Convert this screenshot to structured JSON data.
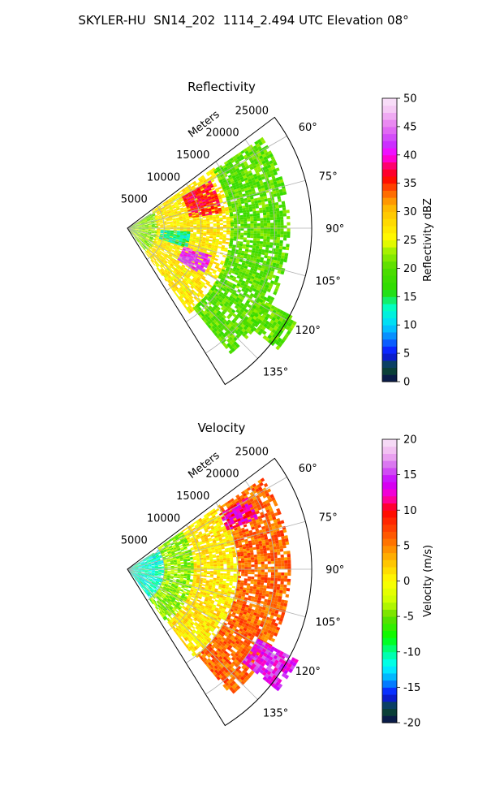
{
  "suptitle": "SKYLER-HU  SN14_202  1114_2.494 UTC Elevation 08°",
  "chart_data": [
    {
      "type": "heatmap",
      "subtype": "polar-sector-radar-ppi",
      "title": "Reflectivity",
      "radial_label": "Meters",
      "radial_ticks": [
        5000,
        10000,
        15000,
        20000,
        25000
      ],
      "r_max": 25000,
      "angle_ticks": [
        "60°",
        "75°",
        "90°",
        "105°",
        "120°",
        "135°"
      ],
      "angle_values": [
        60,
        75,
        90,
        105,
        120,
        135
      ],
      "theta_range": [
        53,
        148
      ],
      "grid": true,
      "colorbar": {
        "label": "Reflectivity dBZ",
        "range": [
          0,
          50
        ],
        "ticks": [
          0,
          5,
          10,
          15,
          20,
          25,
          30,
          35,
          40,
          45,
          50
        ],
        "colormap": [
          [
            0,
            "#0a0a50"
          ],
          [
            2.5,
            "#0a5030"
          ],
          [
            5,
            "#0a0aff"
          ],
          [
            7.5,
            "#0a78ff"
          ],
          [
            10,
            "#00d7ff"
          ],
          [
            13,
            "#00ffc8"
          ],
          [
            16,
            "#28dc00"
          ],
          [
            20,
            "#50dc00"
          ],
          [
            23,
            "#a0f000"
          ],
          [
            25,
            "#ffff00"
          ],
          [
            28,
            "#ffdc00"
          ],
          [
            31,
            "#ffb400"
          ],
          [
            34,
            "#ff5000"
          ],
          [
            36,
            "#ff0000"
          ],
          [
            38,
            "#ff0064"
          ],
          [
            40,
            "#ff00ff"
          ],
          [
            42,
            "#c832ff"
          ],
          [
            45,
            "#e678f0"
          ],
          [
            48,
            "#f5c8f5"
          ],
          [
            50,
            "#fae6fa"
          ]
        ]
      },
      "echo_regions": [
        {
          "name": "near-range",
          "theta": [
            58,
            142
          ],
          "r": [
            0,
            4000
          ],
          "value": 22
        },
        {
          "name": "main-band",
          "theta": [
            55,
            143
          ],
          "r": [
            4000,
            14000
          ],
          "value": 27
        },
        {
          "name": "outer-band",
          "theta": [
            56,
            140
          ],
          "r": [
            14000,
            22000
          ],
          "value": 20
        },
        {
          "name": "cyan-core",
          "theta": [
            93,
            108
          ],
          "r": [
            4500,
            8500
          ],
          "value": 13
        },
        {
          "name": "red-arc-north",
          "theta": [
            60,
            80
          ],
          "r": [
            8500,
            13000
          ],
          "value": 36
        },
        {
          "name": "magenta-core",
          "theta": [
            108,
            122
          ],
          "r": [
            8000,
            12000
          ],
          "value": 42
        },
        {
          "name": "distant-cluster",
          "theta": [
            118,
            128
          ],
          "r": [
            20000,
            26000
          ],
          "value": 20
        }
      ]
    },
    {
      "type": "heatmap",
      "subtype": "polar-sector-radar-ppi",
      "title": "Velocity",
      "radial_label": "Meters",
      "radial_ticks": [
        5000,
        10000,
        15000,
        20000,
        25000
      ],
      "r_max": 25000,
      "angle_ticks": [
        "60°",
        "75°",
        "90°",
        "105°",
        "120°",
        "135°"
      ],
      "angle_values": [
        60,
        75,
        90,
        105,
        120,
        135
      ],
      "theta_range": [
        53,
        148
      ],
      "grid": true,
      "colorbar": {
        "label": "Velocity (m/s)",
        "range": [
          -20,
          20
        ],
        "ticks": [
          -20,
          -15,
          -10,
          -5,
          0,
          5,
          10,
          15,
          20
        ],
        "colormap": [
          [
            -20,
            "#0a0a50"
          ],
          [
            -18,
            "#0a5030"
          ],
          [
            -16,
            "#0a0aff"
          ],
          [
            -14,
            "#00a0ff"
          ],
          [
            -12,
            "#00ffff"
          ],
          [
            -10,
            "#00ff96"
          ],
          [
            -8,
            "#00ff00"
          ],
          [
            -5,
            "#64dc00"
          ],
          [
            -3,
            "#c8ff00"
          ],
          [
            0,
            "#ffff00"
          ],
          [
            2,
            "#ffd200"
          ],
          [
            4,
            "#ffa000"
          ],
          [
            6,
            "#ff6400"
          ],
          [
            8,
            "#ff3200"
          ],
          [
            10,
            "#ff0000"
          ],
          [
            12,
            "#ff00c8"
          ],
          [
            14,
            "#c800ff"
          ],
          [
            16,
            "#d264f0"
          ],
          [
            18,
            "#f0b4f0"
          ],
          [
            20,
            "#f8e6f8"
          ]
        ]
      },
      "echo_regions": [
        {
          "name": "near-range",
          "theta": [
            58,
            142
          ],
          "r": [
            0,
            5000
          ],
          "value": -11
        },
        {
          "name": "inner-band",
          "theta": [
            55,
            143
          ],
          "r": [
            5000,
            9000
          ],
          "value": -4
        },
        {
          "name": "middle-band",
          "theta": [
            55,
            142
          ],
          "r": [
            9000,
            15000
          ],
          "value": 1
        },
        {
          "name": "outer-band",
          "theta": [
            56,
            140
          ],
          "r": [
            15000,
            22000
          ],
          "value": 6
        },
        {
          "name": "magenta-north",
          "theta": [
            59,
            68
          ],
          "r": [
            14500,
            19000
          ],
          "value": 12
        },
        {
          "name": "distant-cluster",
          "theta": [
            118,
            128
          ],
          "r": [
            20000,
            26000
          ],
          "value": 14
        }
      ]
    }
  ]
}
